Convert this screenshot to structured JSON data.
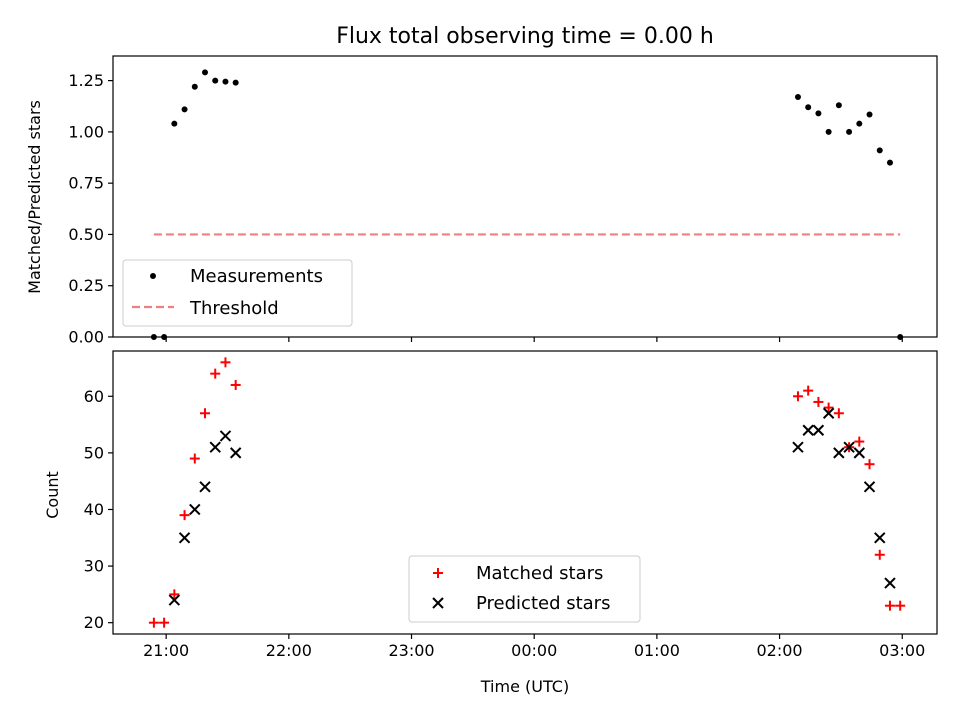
{
  "chart_data": [
    {
      "type": "scatter",
      "title": "Flux total observing time = 0.00 h",
      "xlabel": "",
      "ylabel": "Matched/Predicted stars",
      "ylim": [
        0,
        1.37
      ],
      "xlim": [
        "20:34",
        "03:17"
      ],
      "x_ticks": [
        {
          "t": "21:00",
          "label": ""
        },
        {
          "t": "22:00",
          "label": ""
        },
        {
          "t": "23:00",
          "label": ""
        },
        {
          "t": "00:00",
          "label": ""
        },
        {
          "t": "01:00",
          "label": ""
        },
        {
          "t": "02:00",
          "label": ""
        },
        {
          "t": "03:00",
          "label": ""
        }
      ],
      "y_ticks": [
        {
          "v": 0,
          "label": "0.00"
        },
        {
          "v": 0.25,
          "label": "0.25"
        },
        {
          "v": 0.5,
          "label": "0.50"
        },
        {
          "v": 0.75,
          "label": "0.75"
        },
        {
          "v": 1.0,
          "label": "1.00"
        },
        {
          "v": 1.25,
          "label": "1.25"
        }
      ],
      "legend": {
        "placement": "lower-left",
        "entries": [
          "Measurements",
          "Threshold"
        ]
      },
      "series": [
        {
          "name": "Measurements",
          "marker": "dot",
          "color": "#000000",
          "points": [
            {
              "t": "20:54",
              "y": 0.0
            },
            {
              "t": "20:59",
              "y": 0.0
            },
            {
              "t": "21:04",
              "y": 1.04
            },
            {
              "t": "21:09",
              "y": 1.11
            },
            {
              "t": "21:14",
              "y": 1.22
            },
            {
              "t": "21:19",
              "y": 1.29
            },
            {
              "t": "21:24",
              "y": 1.25
            },
            {
              "t": "21:29",
              "y": 1.245
            },
            {
              "t": "21:34",
              "y": 1.24
            },
            {
              "t": "02:09",
              "y": 1.17
            },
            {
              "t": "02:14",
              "y": 1.12
            },
            {
              "t": "02:19",
              "y": 1.09
            },
            {
              "t": "02:24",
              "y": 1.0
            },
            {
              "t": "02:29",
              "y": 1.13
            },
            {
              "t": "02:34",
              "y": 1.0
            },
            {
              "t": "02:39",
              "y": 1.04
            },
            {
              "t": "02:44",
              "y": 1.085
            },
            {
              "t": "02:49",
              "y": 0.91
            },
            {
              "t": "02:54",
              "y": 0.85
            },
            {
              "t": "02:59",
              "y": 0.0
            }
          ]
        },
        {
          "name": "Threshold",
          "marker": "dashed-line",
          "color": "#f08080",
          "points": [
            {
              "t": "20:54",
              "y": 0.5
            },
            {
              "t": "02:59",
              "y": 0.5
            }
          ]
        }
      ]
    },
    {
      "type": "scatter",
      "title": "",
      "xlabel": "Time (UTC)",
      "ylabel": "Count",
      "ylim": [
        18,
        68
      ],
      "xlim": [
        "20:34",
        "03:17"
      ],
      "x_ticks": [
        {
          "t": "21:00",
          "label": "21:00"
        },
        {
          "t": "22:00",
          "label": "22:00"
        },
        {
          "t": "23:00",
          "label": "23:00"
        },
        {
          "t": "00:00",
          "label": "00:00"
        },
        {
          "t": "01:00",
          "label": "01:00"
        },
        {
          "t": "02:00",
          "label": "02:00"
        },
        {
          "t": "03:00",
          "label": "03:00"
        }
      ],
      "y_ticks": [
        {
          "v": 20,
          "label": "20"
        },
        {
          "v": 30,
          "label": "30"
        },
        {
          "v": 40,
          "label": "40"
        },
        {
          "v": 50,
          "label": "50"
        },
        {
          "v": 60,
          "label": "60"
        }
      ],
      "legend": {
        "placement": "lower-center",
        "entries": [
          "Matched stars",
          "Predicted stars"
        ]
      },
      "series": [
        {
          "name": "Matched stars",
          "marker": "plus",
          "color": "#ff0000",
          "points": [
            {
              "t": "20:54",
              "y": 20
            },
            {
              "t": "20:59",
              "y": 20
            },
            {
              "t": "21:04",
              "y": 25
            },
            {
              "t": "21:09",
              "y": 39
            },
            {
              "t": "21:14",
              "y": 49
            },
            {
              "t": "21:19",
              "y": 57
            },
            {
              "t": "21:24",
              "y": 64
            },
            {
              "t": "21:29",
              "y": 66
            },
            {
              "t": "21:34",
              "y": 62
            },
            {
              "t": "02:09",
              "y": 60
            },
            {
              "t": "02:14",
              "y": 61
            },
            {
              "t": "02:19",
              "y": 59
            },
            {
              "t": "02:24",
              "y": 58
            },
            {
              "t": "02:29",
              "y": 57
            },
            {
              "t": "02:34",
              "y": 51
            },
            {
              "t": "02:39",
              "y": 52
            },
            {
              "t": "02:44",
              "y": 48
            },
            {
              "t": "02:49",
              "y": 32
            },
            {
              "t": "02:54",
              "y": 23
            },
            {
              "t": "02:59",
              "y": 23
            }
          ]
        },
        {
          "name": "Predicted stars",
          "marker": "x",
          "color": "#000000",
          "points": [
            {
              "t": "21:04",
              "y": 24
            },
            {
              "t": "21:09",
              "y": 35
            },
            {
              "t": "21:14",
              "y": 40
            },
            {
              "t": "21:19",
              "y": 44
            },
            {
              "t": "21:24",
              "y": 51
            },
            {
              "t": "21:29",
              "y": 53
            },
            {
              "t": "21:34",
              "y": 50
            },
            {
              "t": "02:09",
              "y": 51
            },
            {
              "t": "02:14",
              "y": 54
            },
            {
              "t": "02:19",
              "y": 54
            },
            {
              "t": "02:24",
              "y": 57
            },
            {
              "t": "02:29",
              "y": 50
            },
            {
              "t": "02:34",
              "y": 51
            },
            {
              "t": "02:39",
              "y": 50
            },
            {
              "t": "02:44",
              "y": 44
            },
            {
              "t": "02:49",
              "y": 35
            },
            {
              "t": "02:54",
              "y": 27
            }
          ]
        }
      ]
    }
  ]
}
